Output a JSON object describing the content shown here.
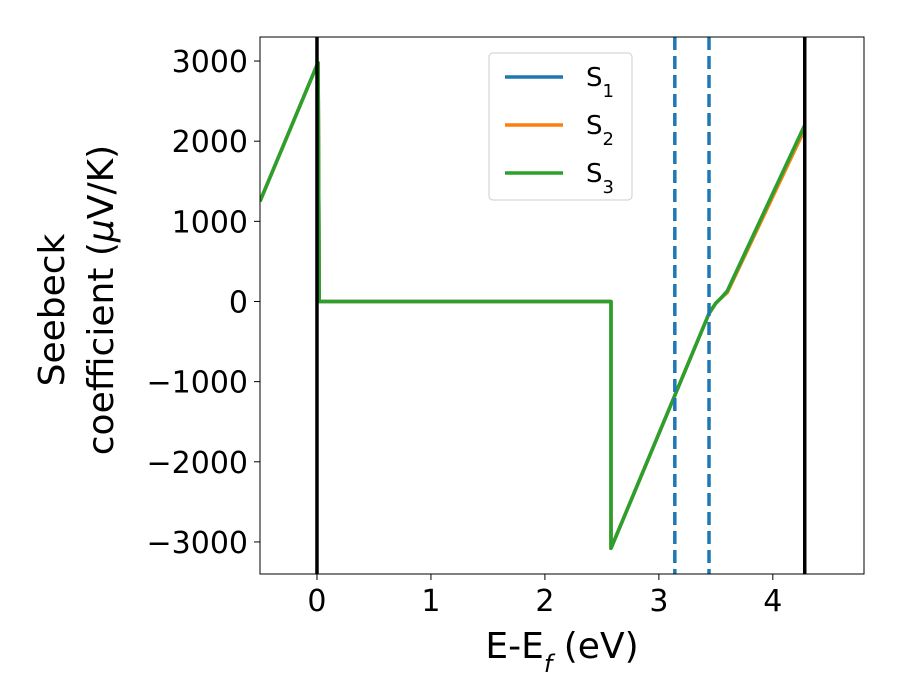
{
  "chart_data": {
    "type": "line",
    "xlabel": "E-E",
    "xlabel_sub": "f",
    "xlabel_unit": " (eV)",
    "ylabel_line1": "Seebeck",
    "ylabel_line2": "coefficient  (",
    "ylabel_mu": "μ",
    "ylabel_unit_tail": "V/K)",
    "xlim": [
      -0.5,
      4.8
    ],
    "ylim": [
      -3400,
      3300
    ],
    "xticks": [
      0,
      1,
      2,
      3,
      4
    ],
    "xtick_labels": [
      "0",
      "1",
      "2",
      "3",
      "4"
    ],
    "yticks": [
      -3000,
      -2000,
      -1000,
      0,
      1000,
      2000,
      3000
    ],
    "ytick_labels": [
      "−3000",
      "−2000",
      "−1000",
      "0",
      "1000",
      "2000",
      "3000"
    ],
    "grid": false,
    "legend_position": "top-center",
    "vertical_lines": [
      {
        "x": 0.0,
        "style": "solid",
        "color": "#000000"
      },
      {
        "x": 4.28,
        "style": "solid",
        "color": "#000000"
      },
      {
        "x": 3.14,
        "style": "dashed",
        "color": "#1f77b4"
      },
      {
        "x": 3.44,
        "style": "dashed",
        "color": "#1f77b4"
      }
    ],
    "series": [
      {
        "name": "S",
        "sub": "1",
        "color": "#1f77b4",
        "points": [
          [
            -0.5,
            1250
          ],
          [
            0.0,
            2950
          ],
          [
            0.01,
            2980
          ],
          [
            0.02,
            0
          ],
          [
            2.58,
            0
          ],
          [
            2.58,
            -3080
          ],
          [
            3.44,
            -150
          ],
          [
            3.5,
            -20
          ],
          [
            3.55,
            50
          ],
          [
            3.6,
            130
          ],
          [
            4.28,
            2200
          ]
        ]
      },
      {
        "name": "S",
        "sub": "2",
        "color": "#ff7f0e",
        "points": [
          [
            -0.5,
            1250
          ],
          [
            0.0,
            2950
          ],
          [
            0.01,
            2980
          ],
          [
            0.02,
            0
          ],
          [
            2.58,
            0
          ],
          [
            2.58,
            -3080
          ],
          [
            3.44,
            -150
          ],
          [
            3.5,
            -20
          ],
          [
            3.55,
            50
          ],
          [
            3.6,
            110
          ],
          [
            4.28,
            2150
          ]
        ]
      },
      {
        "name": "S",
        "sub": "3",
        "color": "#2ca02c",
        "points": [
          [
            -0.5,
            1250
          ],
          [
            0.0,
            2950
          ],
          [
            0.01,
            2980
          ],
          [
            0.02,
            0
          ],
          [
            2.58,
            0
          ],
          [
            2.58,
            -3080
          ],
          [
            3.44,
            -150
          ],
          [
            3.5,
            -20
          ],
          [
            3.55,
            50
          ],
          [
            3.6,
            130
          ],
          [
            4.28,
            2200
          ]
        ]
      }
    ]
  }
}
